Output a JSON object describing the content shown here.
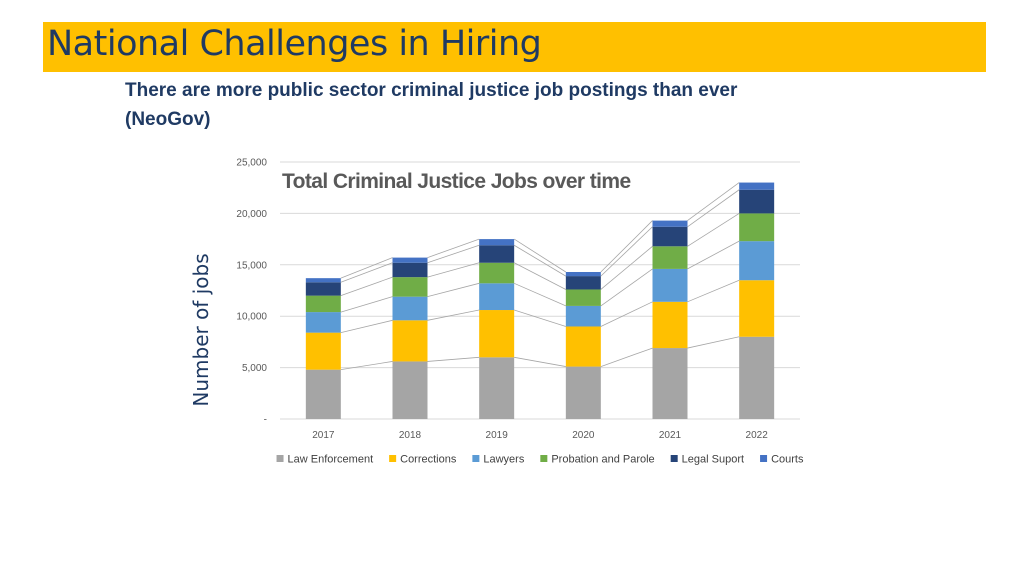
{
  "slide": {
    "title": "National Challenges in Hiring",
    "subtitle_line1": "There are more public sector criminal justice job postings than ever",
    "subtitle_line2": "(NeoGov)"
  },
  "chart_data": {
    "type": "bar",
    "stacked": true,
    "title": "Total Criminal Justice Jobs over time",
    "xlabel": "",
    "ylabel": "Number of jobs",
    "ylim": [
      0,
      25000
    ],
    "yticks": [
      0,
      5000,
      10000,
      15000,
      20000,
      25000
    ],
    "ytick_labels": [
      "-",
      "5,000",
      "10,000",
      "15,000",
      "20,000",
      "25,000"
    ],
    "grid": true,
    "legend_position": "bottom",
    "series_lines": true,
    "categories": [
      "2017",
      "2018",
      "2019",
      "2020",
      "2021",
      "2022"
    ],
    "series": [
      {
        "name": "Law Enforcement",
        "color": "#a5a5a5",
        "values": [
          4800,
          5600,
          6000,
          5100,
          6900,
          8000
        ]
      },
      {
        "name": "Corrections",
        "color": "#ffc000",
        "values": [
          3600,
          4000,
          4600,
          3900,
          4500,
          5500
        ]
      },
      {
        "name": "Lawyers",
        "color": "#5b9bd5",
        "values": [
          2000,
          2300,
          2600,
          2000,
          3200,
          3800
        ]
      },
      {
        "name": "Probation and Parole",
        "color": "#70ad47",
        "values": [
          1600,
          1900,
          2000,
          1600,
          2200,
          2700
        ]
      },
      {
        "name": "Legal Suport",
        "color": "#264478",
        "values": [
          1300,
          1400,
          1700,
          1300,
          1900,
          2300
        ]
      },
      {
        "name": "Courts",
        "color": "#4472c4",
        "values": [
          400,
          500,
          600,
          400,
          600,
          700
        ]
      }
    ]
  }
}
